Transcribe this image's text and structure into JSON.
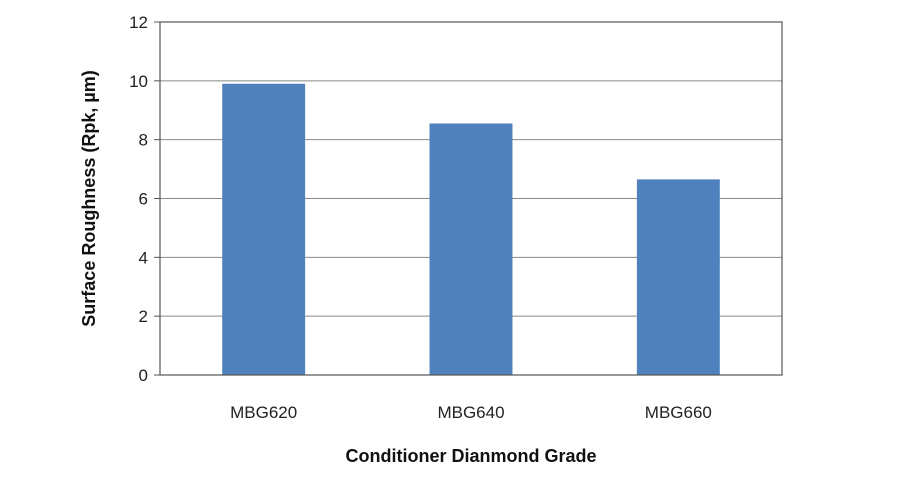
{
  "chart_data": {
    "type": "bar",
    "title": "",
    "xlabel": "Conditioner Dianmond Grade",
    "ylabel": "Surface Roughness (Rpk, µm)",
    "categories": [
      "MBG620",
      "MBG640",
      "MBG660"
    ],
    "values": [
      9.9,
      8.55,
      6.65
    ],
    "ylim": [
      0,
      12
    ],
    "yticks": [
      0,
      2,
      4,
      6,
      8,
      10,
      12
    ],
    "grid": true,
    "legend": "none",
    "bar_color": "#4f81bd"
  }
}
